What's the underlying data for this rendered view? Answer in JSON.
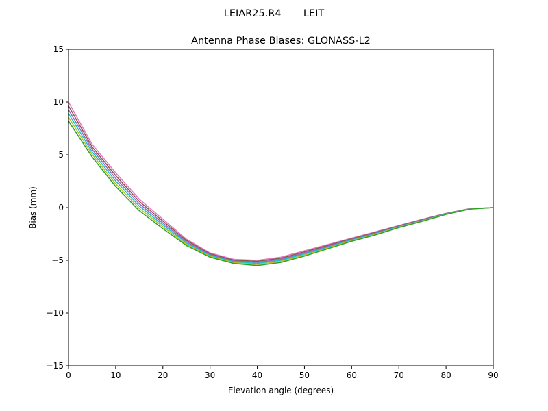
{
  "suptitle": "LEIAR25.R4       LEIT",
  "chart_data": {
    "type": "line",
    "title": "Antenna Phase Biases: GLONASS-L2",
    "xlabel": "Elevation angle (degrees)",
    "ylabel": "Bias (mm)",
    "xlim": [
      0,
      90
    ],
    "ylim": [
      -15,
      15
    ],
    "xticks": [
      0,
      10,
      20,
      30,
      40,
      50,
      60,
      70,
      80,
      90
    ],
    "yticks": [
      -15,
      -10,
      -5,
      0,
      5,
      10,
      15
    ],
    "ytick_labels": [
      "−15",
      "−10",
      "−5",
      "0",
      "5",
      "10",
      "15"
    ],
    "grid": false,
    "legend": "none",
    "x": [
      0,
      5,
      10,
      15,
      20,
      25,
      30,
      35,
      40,
      45,
      50,
      55,
      60,
      65,
      70,
      75,
      80,
      85,
      90
    ],
    "series": [
      {
        "color": "#e377c2",
        "values": [
          10.0,
          6.0,
          3.3,
          0.8,
          -1.1,
          -3.0,
          -4.3,
          -4.9,
          -5.0,
          -4.7,
          -4.1,
          -3.5,
          -2.9,
          -2.3,
          -1.7,
          -1.1,
          -0.55,
          -0.1,
          0
        ]
      },
      {
        "color": "#8c564b",
        "values": [
          9.64,
          5.76,
          3.04,
          0.58,
          -1.28,
          -3.12,
          -4.38,
          -4.98,
          -5.1,
          -4.8,
          -4.2,
          -3.58,
          -2.96,
          -2.36,
          -1.74,
          -1.14,
          -0.57,
          -0.11,
          0
        ]
      },
      {
        "color": "#9467bd",
        "values": [
          9.28,
          5.52,
          2.78,
          0.36,
          -1.46,
          -3.24,
          -4.46,
          -5.06,
          -5.2,
          -4.9,
          -4.3,
          -3.66,
          -3.02,
          -2.42,
          -1.78,
          -1.18,
          -0.59,
          -0.12,
          0
        ]
      },
      {
        "color": "#17becf",
        "values": [
          8.92,
          5.28,
          2.52,
          0.14,
          -1.64,
          -3.36,
          -4.54,
          -5.14,
          -5.3,
          -5.0,
          -4.4,
          -3.74,
          -3.08,
          -2.48,
          -1.82,
          -1.22,
          -0.61,
          -0.13,
          0
        ]
      },
      {
        "color": "#bcbd22",
        "values": [
          8.56,
          5.04,
          2.26,
          -0.08,
          -1.82,
          -3.48,
          -4.62,
          -5.22,
          -5.4,
          -5.1,
          -4.5,
          -3.82,
          -3.14,
          -2.54,
          -1.86,
          -1.26,
          -0.63,
          -0.14,
          0
        ]
      },
      {
        "color": "#2ca02c",
        "values": [
          8.2,
          4.8,
          2.0,
          -0.3,
          -2.0,
          -3.6,
          -4.7,
          -5.3,
          -5.5,
          -5.2,
          -4.6,
          -3.9,
          -3.2,
          -2.6,
          -1.9,
          -1.3,
          -0.65,
          -0.15,
          0
        ]
      }
    ]
  }
}
